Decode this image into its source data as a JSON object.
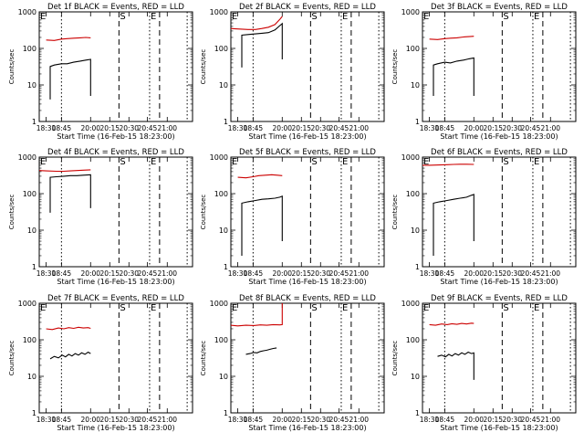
{
  "figure": {
    "xlabel": "Start Time (16-Feb-15 18:23:00)",
    "ylabel": "Counts/sec"
  },
  "chart_data": [
    {
      "type": "line",
      "title": "Det 1f BLACK = Events, RED = LLD",
      "xlabel": "Start Time (16-Feb-15 18:23:00)",
      "ylabel": "Counts/sec",
      "log_y": true,
      "ylim": [
        1,
        1000
      ],
      "xlim": [
        "18:23",
        "21:11"
      ],
      "x_ticks": [
        "18:30",
        "18:45",
        "20:00",
        "20:15",
        "20:30",
        "20:45",
        "21:00"
      ],
      "y_ticks": [
        "1",
        "10",
        "100",
        "1000"
      ],
      "markers": [
        {
          "label": "E",
          "x": "18:23",
          "style": "dashed"
        },
        {
          "label": "S",
          "x": "20:15",
          "style": "dashed"
        },
        {
          "label": "E",
          "x": "20:45",
          "style": "dotted"
        },
        {
          "label": "",
          "x": "18:45",
          "style": "dotted"
        },
        {
          "label": "",
          "x": "20:51",
          "style": "dashed"
        },
        {
          "label": "",
          "x": "21:08",
          "style": "dotted"
        }
      ],
      "series": [
        {
          "name": "Events",
          "color": "#000000",
          "x": [
            "18:34",
            "18:34",
            "18:38",
            "18:45",
            "18:52",
            "19:00",
            "19:08",
            "19:15",
            "19:21",
            "19:21"
          ],
          "values": [
            4,
            32,
            35,
            38,
            38,
            42,
            45,
            48,
            50,
            5
          ]
        },
        {
          "name": "LLD",
          "color": "#cc0000",
          "x": [
            "18:30",
            "18:38",
            "18:45",
            "18:52",
            "19:00",
            "19:08",
            "19:15",
            "19:21"
          ],
          "values": [
            170,
            165,
            180,
            185,
            190,
            195,
            200,
            195
          ]
        }
      ]
    },
    {
      "type": "line",
      "title": "Det 2f BLACK = Events, RED = LLD",
      "xlabel": "Start Time (16-Feb-15 18:23:00)",
      "ylabel": "Counts/sec",
      "log_y": true,
      "ylim": [
        1,
        1000
      ],
      "xlim": [
        "18:23",
        "21:11"
      ],
      "x_ticks": [
        "18:30",
        "18:45",
        "20:00",
        "20:15",
        "20:30",
        "20:45",
        "21:00"
      ],
      "y_ticks": [
        "1",
        "10",
        "100",
        "1000"
      ],
      "markers": [
        {
          "label": "E",
          "x": "18:23",
          "style": "dashed"
        },
        {
          "label": "S",
          "x": "20:15",
          "style": "dashed"
        },
        {
          "label": "E",
          "x": "20:45",
          "style": "dotted"
        },
        {
          "label": "",
          "x": "18:45",
          "style": "dotted"
        },
        {
          "label": "",
          "x": "20:51",
          "style": "dashed"
        },
        {
          "label": "",
          "x": "21:08",
          "style": "dotted"
        }
      ],
      "series": [
        {
          "name": "Events",
          "color": "#000000",
          "x": [
            "18:34",
            "18:34",
            "18:40",
            "18:48",
            "18:56",
            "19:04",
            "19:12",
            "19:18",
            "19:21",
            "19:21"
          ],
          "values": [
            30,
            230,
            240,
            250,
            260,
            270,
            320,
            420,
            480,
            50
          ]
        },
        {
          "name": "LLD",
          "color": "#cc0000",
          "x": [
            "18:23",
            "18:30",
            "18:40",
            "18:48",
            "18:56",
            "19:04",
            "19:12",
            "19:18",
            "19:21"
          ],
          "values": [
            350,
            340,
            330,
            330,
            350,
            380,
            450,
            620,
            750
          ]
        }
      ]
    },
    {
      "type": "line",
      "title": "Det 3f BLACK = Events, RED = LLD",
      "xlabel": "Start Time (16-Feb-15 18:23:00)",
      "ylabel": "Counts/sec",
      "log_y": true,
      "ylim": [
        1,
        1000
      ],
      "xlim": [
        "18:23",
        "21:11"
      ],
      "x_ticks": [
        "18:30",
        "18:45",
        "20:00",
        "20:15",
        "20:30",
        "20:45",
        "21:00"
      ],
      "y_ticks": [
        "1",
        "10",
        "100",
        "1000"
      ],
      "markers": [
        {
          "label": "E",
          "x": "18:23",
          "style": "dashed"
        },
        {
          "label": "S",
          "x": "20:15",
          "style": "dashed"
        },
        {
          "label": "E",
          "x": "20:45",
          "style": "dotted"
        },
        {
          "label": "",
          "x": "18:45",
          "style": "dotted"
        },
        {
          "label": "",
          "x": "20:51",
          "style": "dashed"
        },
        {
          "label": "",
          "x": "21:08",
          "style": "dotted"
        }
      ],
      "series": [
        {
          "name": "Events",
          "color": "#000000",
          "x": [
            "18:34",
            "18:34",
            "18:38",
            "18:45",
            "18:52",
            "19:00",
            "19:08",
            "19:15",
            "19:21",
            "19:21"
          ],
          "values": [
            5,
            35,
            38,
            42,
            40,
            45,
            48,
            52,
            55,
            5
          ]
        },
        {
          "name": "LLD",
          "color": "#cc0000",
          "x": [
            "18:30",
            "18:38",
            "18:45",
            "18:52",
            "19:00",
            "19:08",
            "19:15",
            "19:21"
          ],
          "values": [
            180,
            175,
            185,
            190,
            195,
            205,
            210,
            215
          ]
        }
      ]
    },
    {
      "type": "line",
      "title": "Det 4f BLACK = Events, RED = LLD",
      "xlabel": "Start Time (16-Feb-15 18:23:00)",
      "ylabel": "Counts/sec",
      "log_y": true,
      "ylim": [
        1,
        1000
      ],
      "xlim": [
        "18:23",
        "21:11"
      ],
      "x_ticks": [
        "18:30",
        "18:45",
        "20:00",
        "20:15",
        "20:30",
        "20:45",
        "21:00"
      ],
      "y_ticks": [
        "1",
        "10",
        "100",
        "1000"
      ],
      "markers": [
        {
          "label": "E",
          "x": "18:23",
          "style": "dashed"
        },
        {
          "label": "S",
          "x": "20:15",
          "style": "dashed"
        },
        {
          "label": "E",
          "x": "20:45",
          "style": "dotted"
        },
        {
          "label": "",
          "x": "18:45",
          "style": "dotted"
        },
        {
          "label": "",
          "x": "20:51",
          "style": "dashed"
        },
        {
          "label": "",
          "x": "21:08",
          "style": "dotted"
        }
      ],
      "series": [
        {
          "name": "Events",
          "color": "#000000",
          "x": [
            "18:34",
            "18:34",
            "18:40",
            "18:48",
            "18:56",
            "19:04",
            "19:12",
            "19:21",
            "19:21"
          ],
          "values": [
            30,
            280,
            290,
            300,
            310,
            310,
            320,
            330,
            40
          ]
        },
        {
          "name": "LLD",
          "color": "#cc0000",
          "x": [
            "18:23",
            "18:30",
            "18:40",
            "18:48",
            "18:56",
            "19:04",
            "19:12",
            "19:21"
          ],
          "values": [
            430,
            420,
            410,
            410,
            420,
            430,
            440,
            450
          ]
        }
      ]
    },
    {
      "type": "line",
      "title": "Det 5f BLACK = Events, RED = LLD",
      "xlabel": "Start Time (16-Feb-15 18:23:00)",
      "ylabel": "Counts/sec",
      "log_y": true,
      "ylim": [
        1,
        1000
      ],
      "xlim": [
        "18:23",
        "21:11"
      ],
      "x_ticks": [
        "18:30",
        "18:45",
        "20:00",
        "20:15",
        "20:30",
        "20:45",
        "21:00"
      ],
      "y_ticks": [
        "1",
        "10",
        "100",
        "1000"
      ],
      "markers": [
        {
          "label": "E",
          "x": "18:23",
          "style": "dashed"
        },
        {
          "label": "S",
          "x": "20:15",
          "style": "dashed"
        },
        {
          "label": "E",
          "x": "20:45",
          "style": "dotted"
        },
        {
          "label": "",
          "x": "18:45",
          "style": "dotted"
        },
        {
          "label": "",
          "x": "20:51",
          "style": "dashed"
        },
        {
          "label": "",
          "x": "21:08",
          "style": "dotted"
        }
      ],
      "series": [
        {
          "name": "Events",
          "color": "#000000",
          "x": [
            "18:34",
            "18:34",
            "18:40",
            "18:48",
            "18:56",
            "19:04",
            "19:12",
            "19:18",
            "19:21",
            "19:21"
          ],
          "values": [
            2,
            55,
            60,
            65,
            70,
            72,
            75,
            80,
            85,
            5
          ]
        },
        {
          "name": "LLD",
          "color": "#cc0000",
          "x": [
            "18:30",
            "18:38",
            "18:45",
            "18:52",
            "19:00",
            "19:08",
            "19:15",
            "19:21"
          ],
          "values": [
            280,
            270,
            290,
            310,
            320,
            330,
            320,
            310
          ]
        }
      ]
    },
    {
      "type": "line",
      "title": "Det 6f BLACK = Events, RED = LLD",
      "xlabel": "Start Time (16-Feb-15 18:23:00)",
      "ylabel": "Counts/sec",
      "log_y": true,
      "ylim": [
        1,
        1000
      ],
      "xlim": [
        "18:23",
        "21:11"
      ],
      "x_ticks": [
        "18:30",
        "18:45",
        "20:00",
        "20:15",
        "20:30",
        "20:45",
        "21:00"
      ],
      "y_ticks": [
        "1",
        "10",
        "100",
        "1000"
      ],
      "markers": [
        {
          "label": "E",
          "x": "18:23",
          "style": "dashed"
        },
        {
          "label": "S",
          "x": "20:15",
          "style": "dashed"
        },
        {
          "label": "E",
          "x": "20:45",
          "style": "dotted"
        },
        {
          "label": "",
          "x": "18:45",
          "style": "dotted"
        },
        {
          "label": "",
          "x": "20:51",
          "style": "dashed"
        },
        {
          "label": "",
          "x": "21:08",
          "style": "dotted"
        }
      ],
      "series": [
        {
          "name": "Events",
          "color": "#000000",
          "x": [
            "18:34",
            "18:34",
            "18:40",
            "18:48",
            "18:56",
            "19:04",
            "19:12",
            "19:18",
            "19:21",
            "19:21"
          ],
          "values": [
            2,
            55,
            60,
            65,
            70,
            75,
            80,
            90,
            95,
            5
          ]
        },
        {
          "name": "LLD",
          "color": "#cc0000",
          "x": [
            "18:23",
            "18:30",
            "18:40",
            "18:48",
            "18:56",
            "19:04",
            "19:12",
            "19:21"
          ],
          "values": [
            600,
            600,
            610,
            620,
            630,
            640,
            640,
            630
          ]
        }
      ]
    },
    {
      "type": "line",
      "title": "Det 7f BLACK = Events, RED = LLD",
      "xlabel": "Start Time (16-Feb-15 18:23:00)",
      "ylabel": "Counts/sec",
      "log_y": true,
      "ylim": [
        1,
        1000
      ],
      "xlim": [
        "18:23",
        "21:11"
      ],
      "x_ticks": [
        "18:30",
        "18:45",
        "20:00",
        "20:15",
        "20:30",
        "20:45",
        "21:00"
      ],
      "y_ticks": [
        "1",
        "10",
        "100",
        "1000"
      ],
      "markers": [
        {
          "label": "E",
          "x": "18:23",
          "style": "dashed"
        },
        {
          "label": "S",
          "x": "20:15",
          "style": "dashed"
        },
        {
          "label": "E",
          "x": "20:45",
          "style": "dotted"
        },
        {
          "label": "",
          "x": "18:45",
          "style": "dotted"
        },
        {
          "label": "",
          "x": "20:51",
          "style": "dashed"
        },
        {
          "label": "",
          "x": "21:08",
          "style": "dotted"
        }
      ],
      "series": [
        {
          "name": "Events",
          "color": "#000000",
          "x": [
            "18:34",
            "18:38",
            "18:42",
            "18:46",
            "18:50",
            "18:54",
            "18:58",
            "19:02",
            "19:06",
            "19:10",
            "19:14",
            "19:18",
            "19:21"
          ],
          "values": [
            30,
            35,
            32,
            38,
            34,
            40,
            36,
            42,
            38,
            44,
            40,
            46,
            42
          ]
        },
        {
          "name": "LLD",
          "color": "#cc0000",
          "x": [
            "18:30",
            "18:36",
            "18:42",
            "18:48",
            "18:54",
            "19:00",
            "19:06",
            "19:12",
            "19:18",
            "19:21"
          ],
          "values": [
            200,
            190,
            210,
            200,
            215,
            205,
            220,
            210,
            215,
            205
          ]
        }
      ]
    },
    {
      "type": "line",
      "title": "Det 8f BLACK = Events, RED = LLD",
      "xlabel": "Start Time (16-Feb-15 18:23:00)",
      "ylabel": "Counts/sec",
      "log_y": true,
      "ylim": [
        1,
        1000
      ],
      "xlim": [
        "18:23",
        "21:11"
      ],
      "x_ticks": [
        "18:30",
        "18:45",
        "20:00",
        "20:15",
        "20:30",
        "20:45",
        "21:00"
      ],
      "y_ticks": [
        "1",
        "10",
        "100",
        "1000"
      ],
      "markers": [
        {
          "label": "E",
          "x": "18:23",
          "style": "dashed"
        },
        {
          "label": "S",
          "x": "20:15",
          "style": "dashed"
        },
        {
          "label": "E",
          "x": "20:45",
          "style": "dotted"
        },
        {
          "label": "",
          "x": "18:45",
          "style": "dotted"
        },
        {
          "label": "",
          "x": "20:51",
          "style": "dashed"
        },
        {
          "label": "",
          "x": "21:08",
          "style": "dotted"
        }
      ],
      "series": [
        {
          "name": "Events",
          "color": "#000000",
          "x": [
            "18:38",
            "18:42",
            "18:46",
            "18:50",
            "18:54",
            "18:58",
            "19:02",
            "19:06",
            "19:10",
            "19:14"
          ],
          "values": [
            40,
            42,
            45,
            44,
            48,
            50,
            52,
            55,
            58,
            60
          ]
        },
        {
          "name": "LLD",
          "color": "#cc0000",
          "x": [
            "18:23",
            "18:30",
            "18:38",
            "18:46",
            "18:54",
            "19:02",
            "19:10",
            "19:18",
            "19:21",
            "19:21"
          ],
          "values": [
            250,
            240,
            250,
            245,
            255,
            250,
            260,
            255,
            260,
            1000
          ]
        }
      ]
    },
    {
      "type": "line",
      "title": "Det 9f BLACK = Events, RED = LLD",
      "xlabel": "Start Time (16-Feb-15 18:23:00)",
      "ylabel": "Counts/sec",
      "log_y": true,
      "ylim": [
        1,
        1000
      ],
      "xlim": [
        "18:23",
        "21:11"
      ],
      "x_ticks": [
        "18:30",
        "18:45",
        "20:00",
        "20:15",
        "20:30",
        "20:45",
        "21:00"
      ],
      "y_ticks": [
        "1",
        "10",
        "100",
        "1000"
      ],
      "markers": [
        {
          "label": "E",
          "x": "18:23",
          "style": "dashed"
        },
        {
          "label": "S",
          "x": "20:15",
          "style": "dashed"
        },
        {
          "label": "E",
          "x": "20:45",
          "style": "dotted"
        },
        {
          "label": "",
          "x": "18:45",
          "style": "dotted"
        },
        {
          "label": "",
          "x": "20:51",
          "style": "dashed"
        },
        {
          "label": "",
          "x": "21:08",
          "style": "dotted"
        }
      ],
      "series": [
        {
          "name": "Events",
          "color": "#000000",
          "x": [
            "18:38",
            "18:42",
            "18:46",
            "18:50",
            "18:54",
            "18:58",
            "19:02",
            "19:06",
            "19:10",
            "19:14",
            "19:18",
            "19:21",
            "19:21"
          ],
          "values": [
            35,
            38,
            34,
            40,
            36,
            42,
            38,
            44,
            40,
            46,
            42,
            44,
            8
          ]
        },
        {
          "name": "LLD",
          "color": "#cc0000",
          "x": [
            "18:30",
            "18:36",
            "18:42",
            "18:48",
            "18:54",
            "19:00",
            "19:06",
            "19:12",
            "19:18",
            "19:21"
          ],
          "values": [
            260,
            250,
            270,
            260,
            275,
            265,
            280,
            270,
            285,
            280
          ]
        }
      ]
    }
  ]
}
